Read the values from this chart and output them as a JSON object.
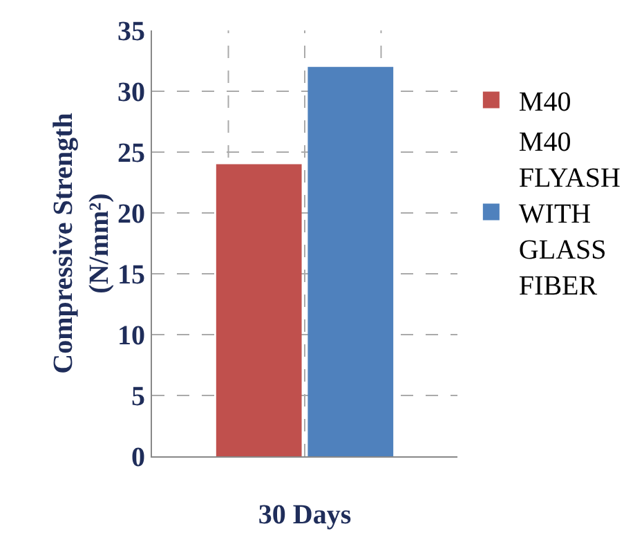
{
  "chart_data": {
    "type": "bar",
    "xlabel": "30 Days",
    "ylabel": "Compressive Strength (N/mm²)",
    "categories": [
      null
    ],
    "series": [
      {
        "name": "M40",
        "color": "#c0504d",
        "values": [
          24
        ]
      },
      {
        "name": "M40 FLYASH WITH GLASS FIBER",
        "color": "#4f81bd",
        "values": [
          32
        ]
      }
    ],
    "ylim": [
      0,
      35
    ],
    "yticks": [
      0,
      5,
      10,
      15,
      20,
      25,
      30,
      35
    ],
    "grid": true,
    "legend": "right"
  }
}
